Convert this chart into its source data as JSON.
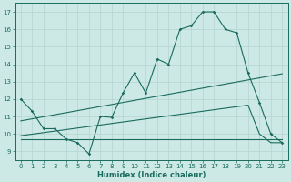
{
  "xlabel": "Humidex (Indice chaleur)",
  "xlim": [
    -0.5,
    23.5
  ],
  "ylim": [
    8.5,
    17.5
  ],
  "xticks": [
    0,
    1,
    2,
    3,
    4,
    5,
    6,
    7,
    8,
    9,
    10,
    11,
    12,
    13,
    14,
    15,
    16,
    17,
    18,
    19,
    20,
    21,
    22,
    23
  ],
  "yticks": [
    9,
    10,
    11,
    12,
    13,
    14,
    15,
    16,
    17
  ],
  "bg_color": "#cce9e5",
  "line_color": "#1a6b5e",
  "grid_color": "#b8d8d4",
  "line1_x": [
    0,
    1,
    2,
    3,
    4,
    5,
    6,
    7,
    8,
    9,
    10,
    11,
    12,
    13,
    14,
    15,
    16,
    17,
    18,
    19,
    20,
    21,
    22,
    23
  ],
  "line1_y": [
    12.0,
    11.3,
    10.3,
    10.3,
    9.7,
    9.5,
    8.85,
    11.0,
    10.95,
    12.35,
    13.5,
    12.35,
    14.3,
    14.0,
    16.0,
    16.2,
    17.0,
    17.0,
    16.0,
    15.8,
    13.5,
    11.8,
    10.0,
    9.5
  ],
  "line2_x": [
    0,
    23
  ],
  "line2_y": [
    10.75,
    13.45
  ],
  "line3_x": [
    0,
    20,
    21,
    22,
    23
  ],
  "line3_y": [
    9.9,
    11.65,
    10.0,
    9.5,
    9.5
  ],
  "line4_x": [
    0,
    23
  ],
  "line4_y": [
    9.7,
    9.7
  ]
}
